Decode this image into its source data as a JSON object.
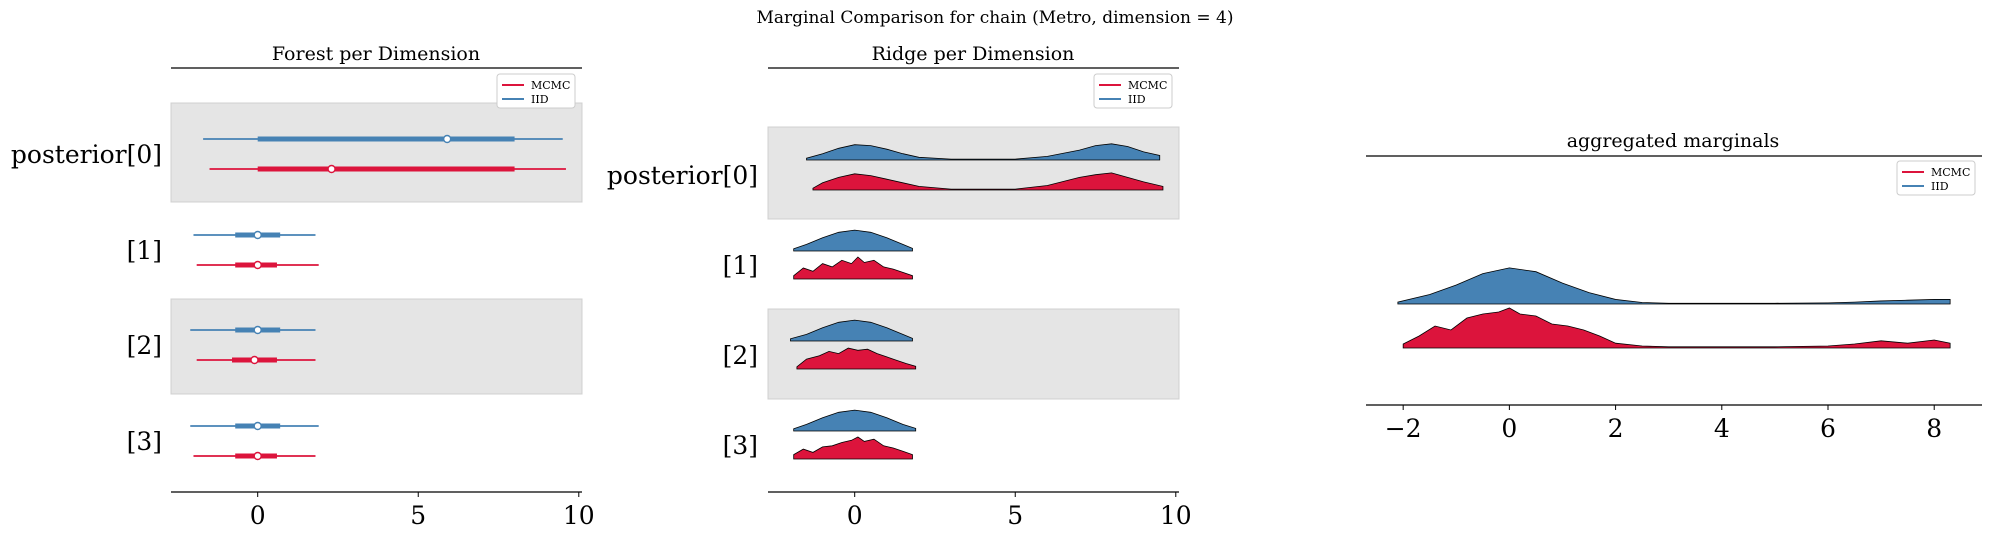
{
  "figure_title": "Marginal Comparison for chain (Metro, dimension = 4)",
  "colors": {
    "mcmc": "#dc143c",
    "iid": "#4682b4",
    "band": "#e5e5e5"
  },
  "chart_data": [
    {
      "type": "forest",
      "title": "Forest per Dimension",
      "xlim": [
        -2.7,
        10.1
      ],
      "xticks": [
        0,
        5,
        10
      ],
      "xtick_labels": [
        "0",
        "5",
        "10"
      ],
      "row_labels": [
        "posterior[0]",
        "[1]",
        "[2]",
        "[3]"
      ],
      "legend": {
        "entries": [
          "MCMC",
          "IID"
        ],
        "placement": "top-right"
      },
      "series": [
        {
          "name": "IID",
          "rows": [
            {
              "whisker": [
                -1.7,
                9.5
              ],
              "box": [
                0.0,
                8.0
              ],
              "point": 5.9
            },
            {
              "whisker": [
                -2.0,
                1.8
              ],
              "box": [
                -0.7,
                0.7
              ],
              "point": 0.0
            },
            {
              "whisker": [
                -2.1,
                1.8
              ],
              "box": [
                -0.7,
                0.7
              ],
              "point": 0.0
            },
            {
              "whisker": [
                -2.1,
                1.9
              ],
              "box": [
                -0.7,
                0.7
              ],
              "point": 0.0
            }
          ]
        },
        {
          "name": "MCMC",
          "rows": [
            {
              "whisker": [
                -1.5,
                9.6
              ],
              "box": [
                0.0,
                8.0
              ],
              "point": 2.3
            },
            {
              "whisker": [
                -1.9,
                1.9
              ],
              "box": [
                -0.7,
                0.6
              ],
              "point": 0.0
            },
            {
              "whisker": [
                -1.9,
                1.8
              ],
              "box": [
                -0.8,
                0.6
              ],
              "point": -0.1
            },
            {
              "whisker": [
                -2.0,
                1.8
              ],
              "box": [
                -0.7,
                0.6
              ],
              "point": 0.0
            }
          ]
        }
      ]
    },
    {
      "type": "ridge",
      "title": "Ridge per Dimension",
      "xlim": [
        -2.7,
        10.1
      ],
      "xticks": [
        0,
        5,
        10
      ],
      "xtick_labels": [
        "0",
        "5",
        "10"
      ],
      "row_labels": [
        "posterior[0]",
        "[1]",
        "[2]",
        "[3]"
      ],
      "legend": {
        "entries": [
          "MCMC",
          "IID"
        ],
        "placement": "top-right"
      },
      "series": [
        {
          "name": "IID",
          "rows": [
            {
              "x": [
                -1.5,
                -1.0,
                -0.5,
                0.0,
                0.5,
                1.0,
                1.5,
                2.0,
                3.0,
                5.0,
                6.0,
                7.0,
                7.5,
                8.0,
                8.5,
                9.0,
                9.5
              ],
              "y": [
                0.1,
                0.35,
                0.65,
                0.85,
                0.8,
                0.6,
                0.35,
                0.15,
                0.05,
                0.05,
                0.2,
                0.55,
                0.8,
                0.9,
                0.75,
                0.45,
                0.25
              ]
            },
            {
              "x": [
                -1.9,
                -1.5,
                -1.0,
                -0.5,
                0.0,
                0.5,
                1.0,
                1.5,
                1.8
              ],
              "y": [
                0.1,
                0.3,
                0.6,
                0.85,
                0.95,
                0.85,
                0.6,
                0.3,
                0.12
              ]
            },
            {
              "x": [
                -2.0,
                -1.5,
                -1.0,
                -0.5,
                0.0,
                0.5,
                1.0,
                1.5,
                1.8
              ],
              "y": [
                0.1,
                0.3,
                0.6,
                0.85,
                0.95,
                0.85,
                0.6,
                0.3,
                0.12
              ]
            },
            {
              "x": [
                -1.9,
                -1.5,
                -1.0,
                -0.5,
                0.0,
                0.5,
                1.0,
                1.5,
                1.9
              ],
              "y": [
                0.1,
                0.3,
                0.6,
                0.85,
                0.95,
                0.85,
                0.6,
                0.3,
                0.12
              ]
            }
          ]
        },
        {
          "name": "MCMC",
          "rows": [
            {
              "x": [
                -1.3,
                -1.0,
                -0.5,
                0.0,
                0.5,
                1.0,
                1.5,
                2.0,
                3.0,
                5.0,
                6.0,
                7.0,
                7.5,
                8.0,
                8.5,
                9.0,
                9.6
              ],
              "y": [
                0.1,
                0.4,
                0.7,
                0.9,
                0.8,
                0.6,
                0.4,
                0.2,
                0.05,
                0.05,
                0.25,
                0.7,
                0.85,
                0.95,
                0.7,
                0.45,
                0.2
              ]
            },
            {
              "x": [
                -1.9,
                -1.6,
                -1.3,
                -1.0,
                -0.7,
                -0.4,
                -0.1,
                0.1,
                0.3,
                0.6,
                0.9,
                1.2,
                1.5,
                1.8
              ],
              "y": [
                0.15,
                0.5,
                0.35,
                0.7,
                0.55,
                0.85,
                0.7,
                1.0,
                0.75,
                0.85,
                0.55,
                0.45,
                0.3,
                0.15
              ]
            },
            {
              "x": [
                -1.8,
                -1.5,
                -1.1,
                -0.8,
                -0.5,
                -0.2,
                0.1,
                0.4,
                0.7,
                1.0,
                1.3,
                1.6,
                1.9
              ],
              "y": [
                0.1,
                0.45,
                0.6,
                0.8,
                0.7,
                0.95,
                0.85,
                0.9,
                0.7,
                0.55,
                0.4,
                0.25,
                0.12
              ]
            },
            {
              "x": [
                -1.9,
                -1.6,
                -1.3,
                -1.0,
                -0.7,
                -0.4,
                -0.1,
                0.1,
                0.3,
                0.6,
                0.9,
                1.2,
                1.5,
                1.8
              ],
              "y": [
                0.2,
                0.45,
                0.3,
                0.55,
                0.6,
                0.75,
                0.85,
                1.0,
                0.8,
                0.9,
                0.6,
                0.5,
                0.35,
                0.2
              ]
            }
          ]
        }
      ]
    },
    {
      "type": "ridge",
      "title": "aggregated marginals",
      "xlim": [
        -2.7,
        8.9
      ],
      "xticks": [
        -2,
        0,
        2,
        4,
        6,
        8
      ],
      "xtick_labels": [
        "−2",
        "0",
        "2",
        "4",
        "6",
        "8"
      ],
      "legend": {
        "entries": [
          "MCMC",
          "IID"
        ],
        "placement": "top-right"
      },
      "series": [
        {
          "name": "IID",
          "x": [
            -2.1,
            -1.5,
            -1.0,
            -0.5,
            0.0,
            0.5,
            1.0,
            1.5,
            2.0,
            2.5,
            3.0,
            4.0,
            5.0,
            6.0,
            6.5,
            7.0,
            7.5,
            8.0,
            8.3
          ],
          "y": [
            0.05,
            0.25,
            0.5,
            0.8,
            0.95,
            0.85,
            0.55,
            0.3,
            0.12,
            0.04,
            0.02,
            0.02,
            0.02,
            0.03,
            0.05,
            0.08,
            0.1,
            0.12,
            0.12
          ]
        },
        {
          "name": "MCMC",
          "x": [
            -2.0,
            -1.7,
            -1.4,
            -1.1,
            -0.8,
            -0.5,
            -0.2,
            0.0,
            0.2,
            0.5,
            0.8,
            1.1,
            1.4,
            1.7,
            2.0,
            2.5,
            3.0,
            5.0,
            6.0,
            6.5,
            7.0,
            7.5,
            8.0,
            8.3
          ],
          "y": [
            0.1,
            0.3,
            0.55,
            0.45,
            0.75,
            0.85,
            0.9,
            1.0,
            0.85,
            0.8,
            0.6,
            0.55,
            0.45,
            0.3,
            0.12,
            0.05,
            0.03,
            0.03,
            0.05,
            0.1,
            0.18,
            0.12,
            0.2,
            0.12
          ]
        }
      ]
    }
  ]
}
